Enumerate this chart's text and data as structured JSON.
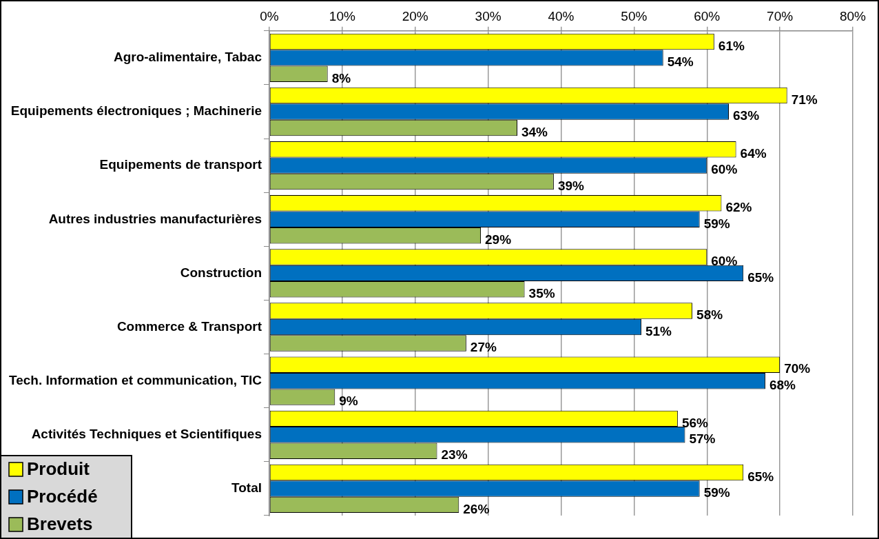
{
  "chart_data": {
    "type": "bar",
    "orientation": "horizontal",
    "categories": [
      "Agro-alimentaire, Tabac",
      "Equipements électroniques ; Machinerie",
      "Equipements de transport",
      "Autres industries manufacturières",
      "Construction",
      "Commerce & Transport",
      "Tech. Information et communication, TIC",
      "Activités Techniques et Scientifiques",
      "Total"
    ],
    "series": [
      {
        "name": "Produit",
        "color": "#ffff00",
        "values": [
          61,
          71,
          64,
          62,
          60,
          58,
          70,
          56,
          65
        ],
        "value_labels": [
          "61%",
          "71%",
          "64%",
          "62%",
          "60%",
          "58%",
          "70%",
          "56%",
          "65%"
        ]
      },
      {
        "name": "Procédé",
        "color": "#0070c0",
        "values": [
          54,
          63,
          60,
          59,
          65,
          51,
          68,
          57,
          59
        ],
        "value_labels": [
          "54%",
          "63%",
          "60%",
          "59%",
          "65%",
          "51%",
          "68%",
          "57%",
          "59%"
        ]
      },
      {
        "name": "Brevets",
        "color": "#9bbb59",
        "values": [
          8,
          34,
          39,
          29,
          35,
          27,
          9,
          23,
          26
        ],
        "value_labels": [
          "8%",
          "34%",
          "39%",
          "29%",
          "35%",
          "27%",
          "9%",
          "23%",
          "26%"
        ]
      }
    ],
    "xlim": [
      0,
      80
    ],
    "xticks": [
      {
        "value": 0,
        "label": "0%"
      },
      {
        "value": 10,
        "label": "10%"
      },
      {
        "value": 20,
        "label": "20%"
      },
      {
        "value": 30,
        "label": "30%"
      },
      {
        "value": 40,
        "label": "40%"
      },
      {
        "value": 50,
        "label": "50%"
      },
      {
        "value": 60,
        "label": "60%"
      },
      {
        "value": 70,
        "label": "70%"
      },
      {
        "value": 80,
        "label": "80%"
      }
    ],
    "grid": "x",
    "legend": "bottom left"
  }
}
